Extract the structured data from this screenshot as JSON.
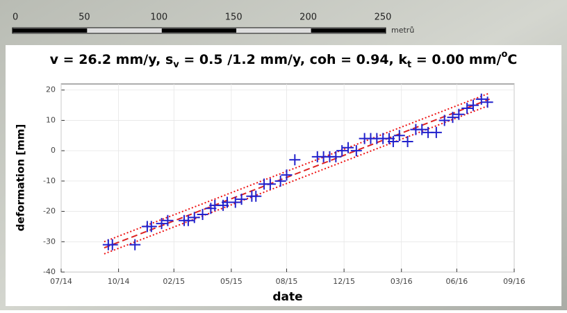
{
  "scale_bar": {
    "ticks": [
      0,
      50,
      100,
      150,
      200,
      250
    ],
    "unit": "metrů"
  },
  "chart_data": {
    "type": "scatter",
    "title_parts": [
      "v = 26.2 mm/y, s",
      "v",
      " = 0.5 /1.2 mm/y, coh = 0.94, k",
      "t",
      " = 0.00 mm/",
      "o",
      "C"
    ],
    "x_label": "date",
    "y_label": "deformation [mm]",
    "xlim": [
      2014.5,
      2016.71
    ],
    "xticks": [
      {
        "value": 2014.5,
        "label": "07/14"
      },
      {
        "value": 2014.78,
        "label": "10/14"
      },
      {
        "value": 2015.05,
        "label": "02/15"
      },
      {
        "value": 2015.33,
        "label": "05/15"
      },
      {
        "value": 2015.6,
        "label": "08/15"
      },
      {
        "value": 2015.88,
        "label": "12/15"
      },
      {
        "value": 2016.16,
        "label": "03/16"
      },
      {
        "value": 2016.43,
        "label": "06/16"
      },
      {
        "value": 2016.71,
        "label": "09/16"
      }
    ],
    "ylim": [
      -40,
      22
    ],
    "yticks": [
      -40,
      -30,
      -20,
      -10,
      0,
      10,
      20
    ],
    "series": [
      {
        "style": "marker",
        "color": "#2222cc",
        "x": [
          2014.73,
          2014.75,
          2014.86,
          2014.92,
          2014.94,
          2014.99,
          2015.02,
          2015.1,
          2015.12,
          2015.15,
          2015.19,
          2015.23,
          2015.25,
          2015.29,
          2015.31,
          2015.35,
          2015.38,
          2015.43,
          2015.45,
          2015.49,
          2015.52,
          2015.57,
          2015.6,
          2015.64,
          2015.75,
          2015.78,
          2015.81,
          2015.84,
          2015.87,
          2015.9,
          2015.94,
          2015.98,
          2016.01,
          2016.04,
          2016.07,
          2016.1,
          2016.12,
          2016.15,
          2016.19,
          2016.23,
          2016.26,
          2016.29,
          2016.33,
          2016.37,
          2016.41,
          2016.44,
          2016.48,
          2016.51,
          2016.55,
          2016.58
        ],
        "values": [
          -31,
          -31,
          -31,
          -25,
          -25,
          -24,
          -23,
          -23,
          -23,
          -22,
          -21,
          -19,
          -18,
          -18,
          -17,
          -17,
          -16,
          -15,
          -15,
          -11,
          -11,
          -10,
          -8,
          -3,
          -2,
          -2,
          -2,
          -2,
          0,
          1,
          0,
          4,
          4,
          4,
          4,
          4,
          3,
          5,
          3,
          7,
          7,
          6,
          6,
          10,
          11,
          12,
          14,
          15,
          17,
          16
        ]
      },
      {
        "style": "dashed",
        "color": "#dd2222",
        "x": [
          2014.71,
          2016.59
        ],
        "values": [
          -32,
          17
        ]
      },
      {
        "style": "dotted",
        "color": "#ee1111",
        "x": [
          2014.71,
          2016.59
        ],
        "values": [
          -30,
          19
        ]
      },
      {
        "style": "dotted",
        "color": "#ee1111",
        "x": [
          2014.71,
          2016.59
        ],
        "values": [
          -34,
          15
        ]
      }
    ]
  }
}
